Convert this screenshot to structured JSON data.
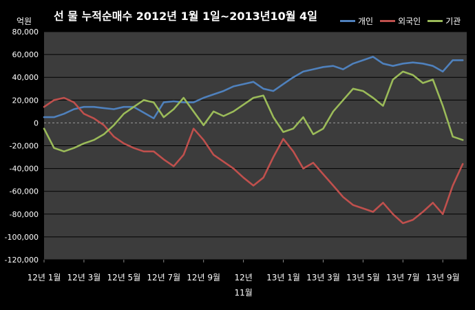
{
  "chart_data": {
    "type": "line",
    "title": "선 물 누적순매수 2012년 1월 1일~2013년10월 4일",
    "y_unit_label": "억원",
    "ylim": [
      -120000,
      80000
    ],
    "yticks": [
      80000,
      60000,
      40000,
      20000,
      0,
      -20000,
      -40000,
      -60000,
      -80000,
      -100000,
      -120000
    ],
    "ytick_labels": [
      "80,000",
      "60,000",
      "40,000",
      "20,000",
      "0",
      "-20,000",
      "-40,000",
      "-60,000",
      "-80,000",
      "-100,000",
      "-120,000"
    ],
    "xlim": [
      0,
      21.2
    ],
    "xticks": [
      {
        "x": 0,
        "label": "12년 1월"
      },
      {
        "x": 2,
        "label": "12년 3월"
      },
      {
        "x": 4,
        "label": "12년 5월"
      },
      {
        "x": 6,
        "label": "12년 7월"
      },
      {
        "x": 8,
        "label": "12년 9월"
      },
      {
        "x": 10,
        "label": "12년 11월"
      },
      {
        "x": 12,
        "label": "13년 1월"
      },
      {
        "x": 14,
        "label": "13년 3월"
      },
      {
        "x": 16,
        "label": "13년 5월"
      },
      {
        "x": 18,
        "label": "13년 7월"
      },
      {
        "x": 20,
        "label": "13년 9월"
      }
    ],
    "grid": true,
    "legend_position": "top-right",
    "series": [
      {
        "name": "개인",
        "color": "#4f81bd",
        "points": [
          [
            0,
            5000
          ],
          [
            0.5,
            5000
          ],
          [
            1,
            8000
          ],
          [
            1.5,
            12000
          ],
          [
            2,
            14000
          ],
          [
            2.5,
            14000
          ],
          [
            3,
            13000
          ],
          [
            3.5,
            12000
          ],
          [
            4,
            14000
          ],
          [
            4.5,
            14000
          ],
          [
            5,
            9000
          ],
          [
            5.5,
            4000
          ],
          [
            6,
            18000
          ],
          [
            6.5,
            19000
          ],
          [
            7,
            18000
          ],
          [
            7.5,
            18000
          ],
          [
            8,
            22000
          ],
          [
            8.5,
            25000
          ],
          [
            9,
            28000
          ],
          [
            9.5,
            32000
          ],
          [
            10,
            34000
          ],
          [
            10.5,
            36000
          ],
          [
            11,
            30000
          ],
          [
            11.5,
            28000
          ],
          [
            12,
            34000
          ],
          [
            12.5,
            40000
          ],
          [
            13,
            45000
          ],
          [
            13.5,
            47000
          ],
          [
            14,
            49000
          ],
          [
            14.5,
            50000
          ],
          [
            15,
            47000
          ],
          [
            15.5,
            52000
          ],
          [
            16,
            55000
          ],
          [
            16.5,
            58000
          ],
          [
            17,
            52000
          ],
          [
            17.5,
            50000
          ],
          [
            18,
            52000
          ],
          [
            18.5,
            53000
          ],
          [
            19,
            52000
          ],
          [
            19.5,
            50000
          ],
          [
            20,
            45000
          ],
          [
            20.5,
            55000
          ],
          [
            21,
            55000
          ]
        ]
      },
      {
        "name": "외국인",
        "color": "#c0504d",
        "points": [
          [
            0,
            14000
          ],
          [
            0.5,
            20000
          ],
          [
            1,
            22000
          ],
          [
            1.5,
            18000
          ],
          [
            2,
            8000
          ],
          [
            2.5,
            4000
          ],
          [
            3,
            -2000
          ],
          [
            3.5,
            -12000
          ],
          [
            4,
            -18000
          ],
          [
            4.5,
            -22000
          ],
          [
            5,
            -25000
          ],
          [
            5.5,
            -25000
          ],
          [
            6,
            -32000
          ],
          [
            6.5,
            -38000
          ],
          [
            7,
            -28000
          ],
          [
            7.5,
            -5000
          ],
          [
            8,
            -15000
          ],
          [
            8.5,
            -28000
          ],
          [
            9,
            -34000
          ],
          [
            9.5,
            -40000
          ],
          [
            10,
            -48000
          ],
          [
            10.5,
            -55000
          ],
          [
            11,
            -48000
          ],
          [
            11.5,
            -30000
          ],
          [
            12,
            -14000
          ],
          [
            12.5,
            -25000
          ],
          [
            13,
            -40000
          ],
          [
            13.5,
            -35000
          ],
          [
            14,
            -45000
          ],
          [
            14.5,
            -55000
          ],
          [
            15,
            -65000
          ],
          [
            15.5,
            -72000
          ],
          [
            16,
            -75000
          ],
          [
            16.5,
            -78000
          ],
          [
            17,
            -70000
          ],
          [
            17.5,
            -80000
          ],
          [
            18,
            -88000
          ],
          [
            18.5,
            -85000
          ],
          [
            19,
            -78000
          ],
          [
            19.5,
            -70000
          ],
          [
            20,
            -80000
          ],
          [
            20.5,
            -55000
          ],
          [
            21,
            -36000
          ]
        ]
      },
      {
        "name": "기관",
        "color": "#9bbb59",
        "points": [
          [
            0,
            -5000
          ],
          [
            0.5,
            -22000
          ],
          [
            1,
            -25000
          ],
          [
            1.5,
            -22000
          ],
          [
            2,
            -18000
          ],
          [
            2.5,
            -15000
          ],
          [
            3,
            -10000
          ],
          [
            3.5,
            -2000
          ],
          [
            4,
            8000
          ],
          [
            4.5,
            14000
          ],
          [
            5,
            20000
          ],
          [
            5.5,
            18000
          ],
          [
            6,
            5000
          ],
          [
            6.5,
            12000
          ],
          [
            7,
            22000
          ],
          [
            7.5,
            10000
          ],
          [
            8,
            -2000
          ],
          [
            8.5,
            10000
          ],
          [
            9,
            6000
          ],
          [
            9.5,
            10000
          ],
          [
            10,
            16000
          ],
          [
            10.5,
            22000
          ],
          [
            11,
            24000
          ],
          [
            11.5,
            5000
          ],
          [
            12,
            -8000
          ],
          [
            12.5,
            -5000
          ],
          [
            13,
            5000
          ],
          [
            13.5,
            -10000
          ],
          [
            14,
            -5000
          ],
          [
            14.5,
            10000
          ],
          [
            15,
            20000
          ],
          [
            15.5,
            30000
          ],
          [
            16,
            28000
          ],
          [
            16.5,
            22000
          ],
          [
            17,
            15000
          ],
          [
            17.5,
            38000
          ],
          [
            18,
            45000
          ],
          [
            18.5,
            42000
          ],
          [
            19,
            35000
          ],
          [
            19.5,
            38000
          ],
          [
            20,
            15000
          ],
          [
            20.5,
            -12000
          ],
          [
            21,
            -15000
          ]
        ]
      }
    ]
  }
}
